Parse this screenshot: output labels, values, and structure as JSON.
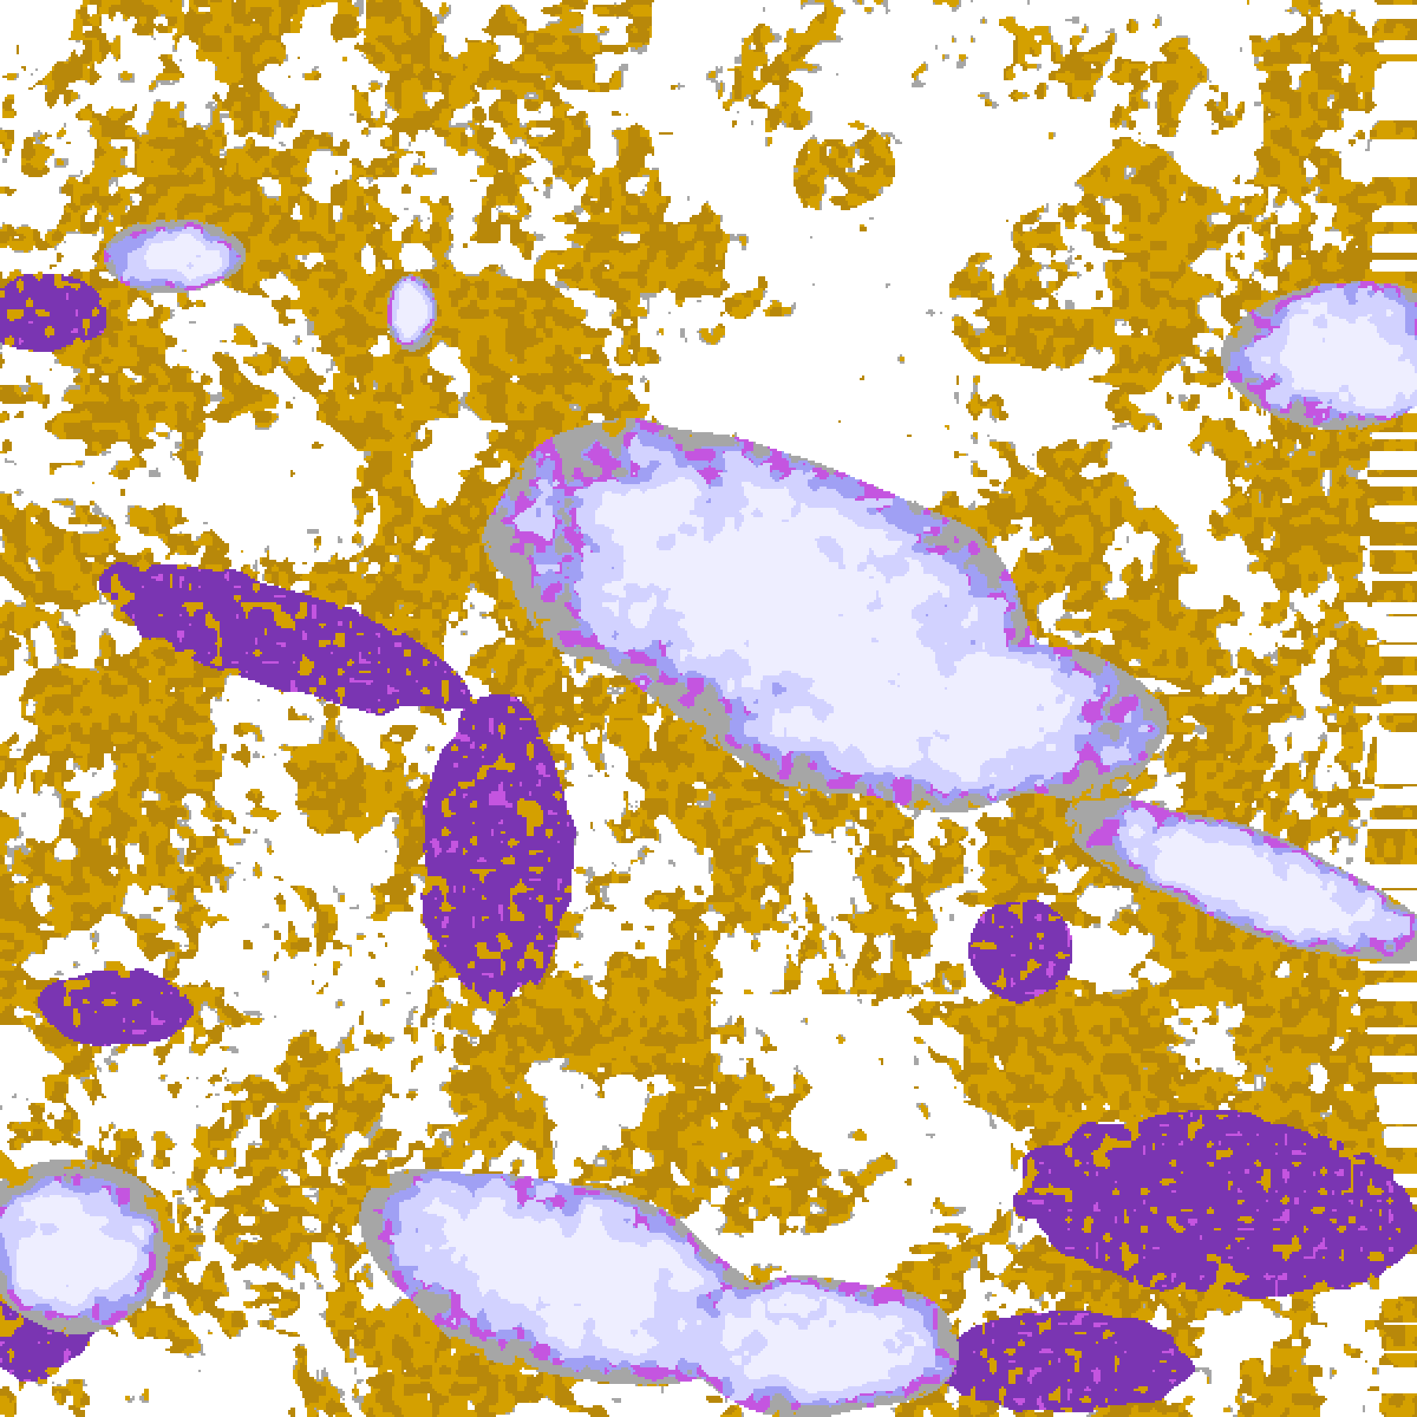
{
  "image": {
    "kind": "false-color satellite cloud classification",
    "palette": {
      "clear": "#ffffff",
      "gold": "#d4a000",
      "dark_gold": "#b8880a",
      "purple": "#7a35b2",
      "magenta": "#c455e0",
      "lavender": "#a0a0f4",
      "light_lavender": "#d2d2ff",
      "pale_lavender": "#eeeeff",
      "grey": "#a6a6a6"
    }
  }
}
